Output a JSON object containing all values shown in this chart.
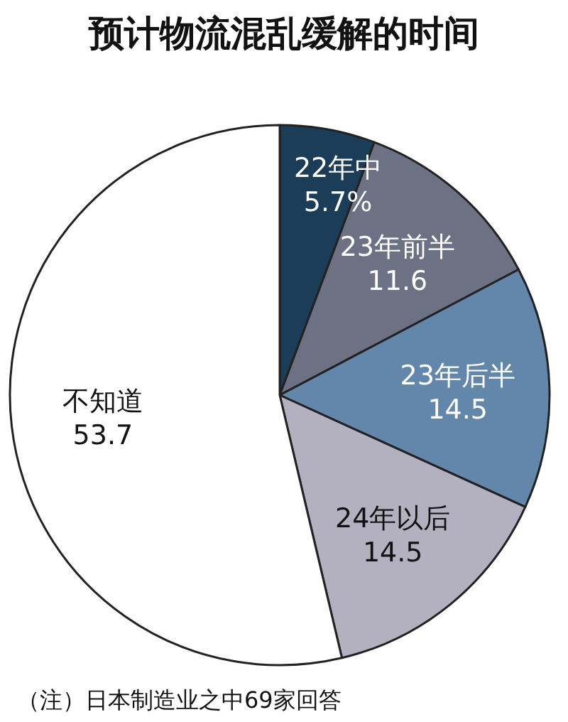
{
  "chart_data": {
    "type": "pie",
    "title": "预计物流混乱缓解的时间",
    "categories": [
      "22年中",
      "23年前半",
      "23年后半",
      "24年以后",
      "不知道"
    ],
    "values": [
      5.7,
      11.6,
      14.5,
      14.5,
      53.7
    ],
    "value_labels": [
      "5.7%",
      "11.6",
      "14.5",
      "14.5",
      "53.7"
    ],
    "colors": [
      "#1c3d57",
      "#6c7283",
      "#6287ab",
      "#b3b0bf",
      "#ffffff"
    ],
    "annotations": [
      "（注）日本制造业之中69家回答"
    ]
  }
}
